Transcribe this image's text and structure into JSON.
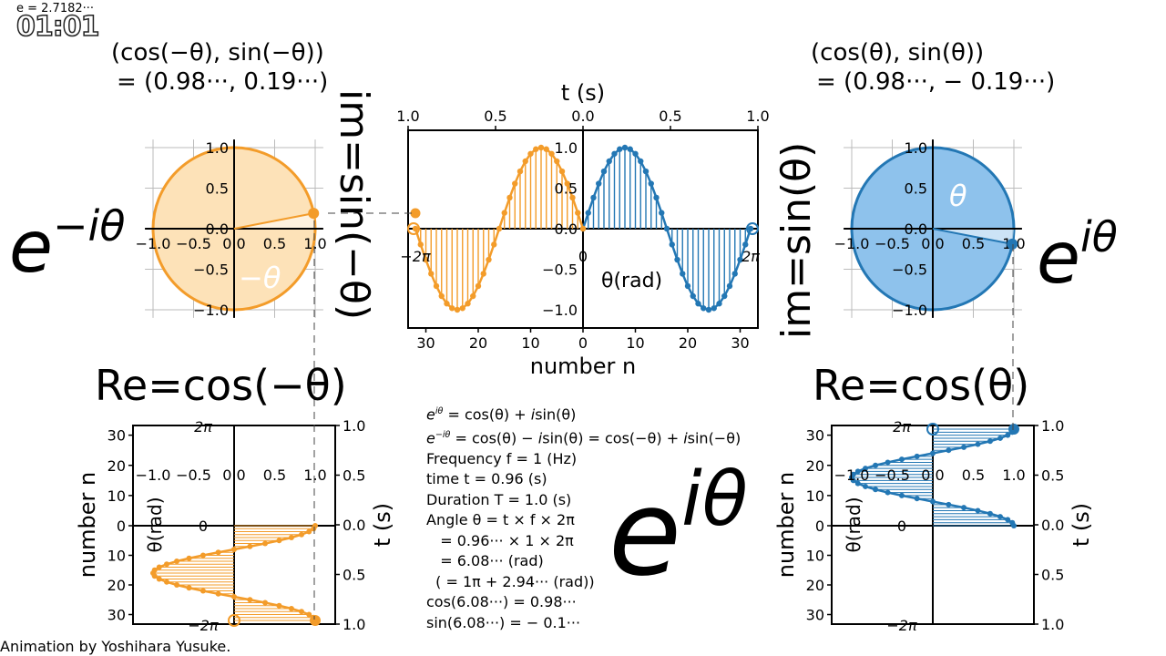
{
  "header": {
    "e_value": "e = 2.7182···",
    "timer": "01:01"
  },
  "credit": "Animation by Yoshihara Yusuke.",
  "left_labels": {
    "coord_line1": "(cos(−θ),  sin(−θ))",
    "coord_line2": "= (0.98···,  0.19···)",
    "exp_base": "e",
    "exp_power": "−iθ",
    "re_label": "Re=cos(−θ)",
    "im_label": "im=sin(−θ)",
    "angle_label": "−θ"
  },
  "right_labels": {
    "coord_line1": "(cos(θ),  sin(θ))",
    "coord_line2": "= (0.98···,  − 0.19···)",
    "exp_base": "e",
    "exp_power": "iθ",
    "re_label": "Re=cos(θ)",
    "im_label": "im=sin(θ)",
    "angle_label": "θ"
  },
  "center_big": {
    "base": "e",
    "power": "iθ"
  },
  "formulas": [
    "e^{iθ} = cos(θ) + isin(θ)",
    "e^{−iθ} = cos(θ) − isin(θ) = cos(−θ) + isin(−θ)",
    "Frequency f = 1 (Hz)",
    "time t = 0.96 (s)",
    "Duration T = 1.0 (s)",
    "Angle θ = t × f × 2π",
    "   = 0.96··· × 1 × 2π",
    "   = 6.08··· (rad)",
    "  ( = 1π + 2.94··· (rad))",
    "cos(6.08···) = 0.98···",
    "sin(6.08···) = − 0.1···"
  ],
  "colors": {
    "orange": "#f39c2a",
    "orange_fill": "#fde2b8",
    "blue": "#2377b4",
    "blue_fill": "#8ec2ec"
  },
  "chart_data": [
    {
      "type": "scatter",
      "name": "unit-circle-left",
      "x_ticks": [
        "−1.0",
        "−0.5",
        "0.0",
        "0.5",
        "1.0"
      ],
      "y_ticks": [
        "1.0",
        "0.5",
        "0.0",
        "−0.5",
        "−1.0"
      ],
      "xlim": [
        -1.1,
        1.1
      ],
      "ylim": [
        -1.1,
        1.1
      ],
      "point": [
        0.98,
        0.19
      ],
      "grid": true
    },
    {
      "type": "line",
      "name": "sine-center",
      "top_axis_label": "t (s)",
      "top_ticks": [
        "1.0",
        "0.5",
        "0.0",
        "0.5",
        "1.0"
      ],
      "bottom_axis_label": "number n",
      "bottom_ticks": [
        "30",
        "20",
        "10",
        "0",
        "10",
        "20",
        "30"
      ],
      "y_ticks": [
        "1.0",
        "0.5",
        "0.0",
        "−0.5",
        "−1.0"
      ],
      "ylim": [
        -1.1,
        1.1
      ],
      "n_samples": 32,
      "theta_ticks": [
        "−2π",
        "0",
        "2π"
      ],
      "theta_label": "θ(rad)"
    },
    {
      "type": "scatter",
      "name": "unit-circle-right",
      "x_ticks": [
        "−1.0",
        "−0.5",
        "0.0",
        "0.5",
        "1.0"
      ],
      "y_ticks": [
        "1.0",
        "0.5",
        "0.0",
        "−0.5",
        "−1.0"
      ],
      "xlim": [
        -1.1,
        1.1
      ],
      "ylim": [
        -1.1,
        1.1
      ],
      "point": [
        0.98,
        -0.19
      ],
      "grid": true
    },
    {
      "type": "line",
      "name": "cosine-left",
      "left_axis_label": "number n",
      "left_ticks": [
        "30",
        "20",
        "10",
        "0",
        "10",
        "20",
        "30"
      ],
      "right_axis_label": "t (s)",
      "right_ticks": [
        "1.0",
        "0.5",
        "0.0",
        "0.5",
        "1.0"
      ],
      "x_ticks": [
        "−1.0",
        "−0.5",
        "0.0",
        "0.5",
        "1.0"
      ],
      "theta_ticks": [
        "2π",
        "0",
        "−2π"
      ],
      "theta_label": "θ(rad)"
    },
    {
      "type": "line",
      "name": "cosine-right",
      "left_axis_label": "number n",
      "left_ticks": [
        "30",
        "20",
        "10",
        "0",
        "10",
        "20",
        "30"
      ],
      "right_axis_label": "t (s)",
      "right_ticks": [
        "1.0",
        "0.5",
        "0.0",
        "0.5",
        "1.0"
      ],
      "x_ticks": [
        "−1.0",
        "−0.5",
        "0.0",
        "0.5",
        "1.0"
      ],
      "theta_ticks": [
        "2π",
        "0",
        "−2π"
      ],
      "theta_label": "θ(rad)"
    }
  ]
}
